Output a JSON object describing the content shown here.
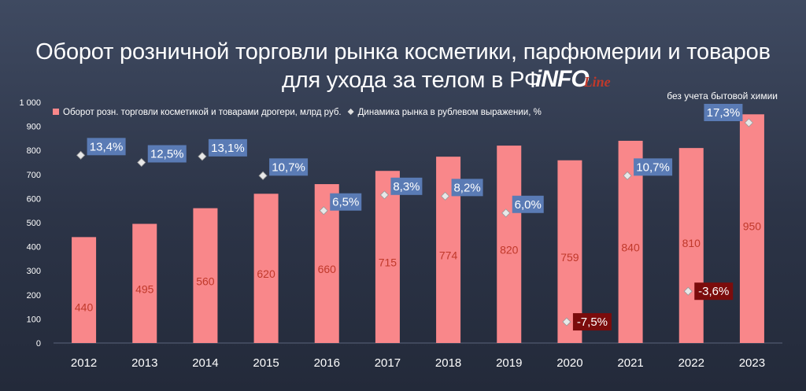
{
  "title_line1": "Оборот розничной торговли рынка косметики, парфюмерии и товаров",
  "title_line2": "для ухода за телом в РФ",
  "logo_info": "iNFO",
  "logo_line": "Line",
  "note": "без учета бытовой химии",
  "colors": {
    "bar": "#f9878a",
    "bar_label": "#c0392b",
    "positive_box": "#5a7bb5",
    "negative_box": "#7b0c0c",
    "axis_text": "#ffffff",
    "grid": "#5a637a"
  },
  "chart_data": {
    "type": "bar",
    "categories": [
      "2012",
      "2013",
      "2014",
      "2015",
      "2016",
      "2017",
      "2018",
      "2019",
      "2020",
      "2021",
      "2022",
      "2023"
    ],
    "series": [
      {
        "name": "Оборот розн. торговли косметикой и товарами дрогери, млрд руб.",
        "type": "bar",
        "values": [
          440,
          495,
          560,
          620,
          660,
          715,
          774,
          820,
          759,
          840,
          810,
          950
        ],
        "labels": [
          "440",
          "495",
          "560",
          "620",
          "660",
          "715",
          "774",
          "820",
          "759",
          "840",
          "810",
          "950"
        ]
      },
      {
        "name": "Динамика рынка в рублевом выражении, %",
        "type": "scatter",
        "values": [
          13.4,
          12.5,
          13.1,
          10.7,
          6.5,
          8.3,
          8.2,
          6.0,
          -7.5,
          10.7,
          -3.6,
          17.3
        ],
        "labels": [
          "13,4%",
          "12,5%",
          "13,1%",
          "10,7%",
          "6,5%",
          "8,3%",
          "8,2%",
          "6,0%",
          "-7,5%",
          "10,7%",
          "-3,6%",
          "17,3%"
        ],
        "marker_positions_on_left_axis": [
          780,
          750,
          775,
          695,
          550,
          615,
          610,
          540,
          88,
          695,
          215,
          915
        ]
      }
    ],
    "y_ticks": [
      "0",
      "100",
      "200",
      "300",
      "400",
      "500",
      "600",
      "700",
      "800",
      "900",
      "1 000"
    ],
    "ylim": [
      0,
      1000
    ],
    "grid": false,
    "legend": "top-left"
  }
}
